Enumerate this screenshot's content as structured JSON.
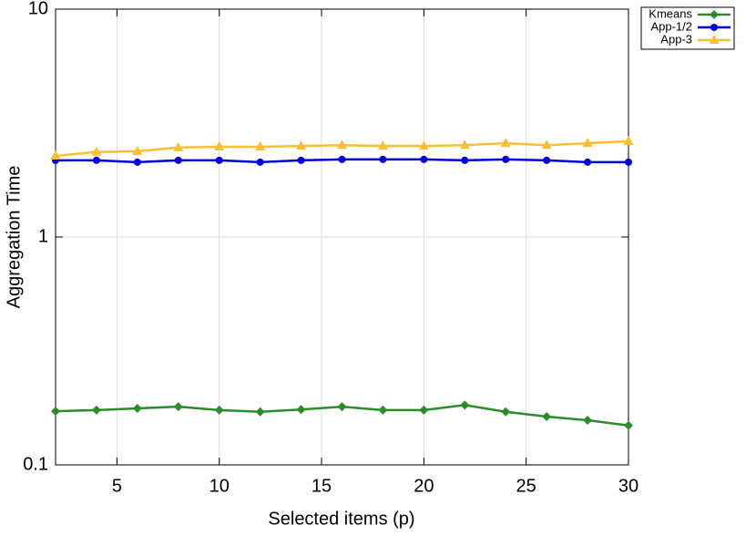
{
  "chart_data": {
    "type": "line",
    "x_label": "Selected items (p)",
    "y_label": "Aggregation Time",
    "x": [
      2,
      4,
      6,
      8,
      10,
      12,
      14,
      16,
      18,
      20,
      22,
      24,
      26,
      28,
      30
    ],
    "series": [
      {
        "name": "Kmeans",
        "color": "#2a8c2a",
        "marker": "diamond",
        "values": [
          0.172,
          0.174,
          0.177,
          0.18,
          0.174,
          0.171,
          0.175,
          0.18,
          0.174,
          0.174,
          0.183,
          0.171,
          0.163,
          0.157,
          0.149
        ]
      },
      {
        "name": "App-1/2",
        "color": "#0000dd",
        "marker": "circle",
        "values": [
          2.17,
          2.17,
          2.13,
          2.17,
          2.17,
          2.13,
          2.17,
          2.19,
          2.19,
          2.19,
          2.17,
          2.19,
          2.17,
          2.13,
          2.13
        ]
      },
      {
        "name": "App-3",
        "color": "#f8c030",
        "marker": "triangle",
        "values": [
          2.27,
          2.36,
          2.38,
          2.47,
          2.49,
          2.49,
          2.51,
          2.53,
          2.51,
          2.51,
          2.53,
          2.58,
          2.53,
          2.58,
          2.63
        ]
      }
    ],
    "xlim": [
      2,
      30
    ],
    "xticks": [
      5,
      10,
      15,
      20,
      25,
      30
    ],
    "ylim": [
      0.1,
      10
    ],
    "yticks": [
      0.1,
      1,
      10
    ],
    "log_y": true,
    "grid": true,
    "legend": "top-right-outside"
  }
}
